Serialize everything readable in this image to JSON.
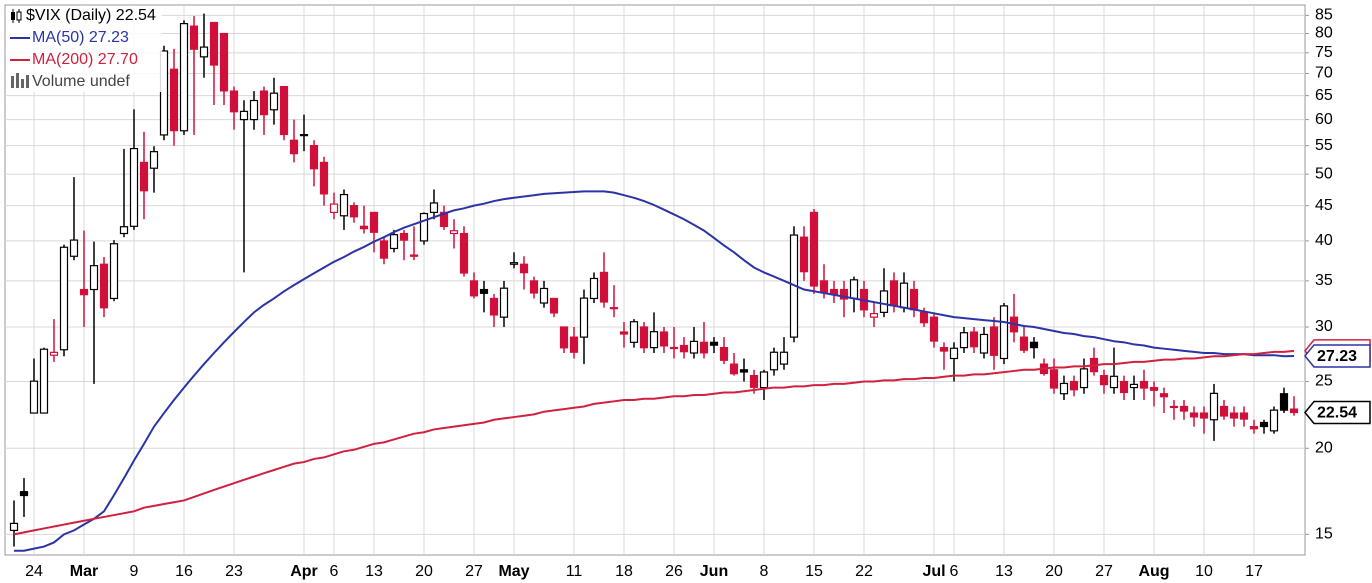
{
  "chart_data": {
    "type": "candlestick",
    "title": "$VIX (Daily) 22.54",
    "volume_label": "Volume undef",
    "log_scale": true,
    "grid": true,
    "up_color": "#000000",
    "down_color": "#d0103a",
    "ylim": [
      14,
      88
    ],
    "yticks": [
      15,
      20,
      25,
      30,
      35,
      40,
      45,
      50,
      55,
      60,
      65,
      70,
      75,
      80,
      85
    ],
    "categories": [
      null,
      null,
      "24",
      null,
      null,
      null,
      null,
      "Mar",
      null,
      null,
      null,
      null,
      "9",
      null,
      null,
      null,
      null,
      "16",
      null,
      null,
      null,
      null,
      "23",
      null,
      null,
      null,
      null,
      null,
      null,
      "Apr",
      null,
      null,
      "6",
      null,
      null,
      null,
      "13",
      null,
      null,
      null,
      null,
      "20",
      null,
      null,
      null,
      null,
      "27",
      null,
      null,
      null,
      "May",
      null,
      null,
      null,
      null,
      null,
      "11",
      null,
      null,
      null,
      null,
      "18",
      null,
      null,
      null,
      null,
      "26",
      null,
      null,
      null,
      "Jun",
      null,
      null,
      null,
      null,
      "8",
      null,
      null,
      null,
      null,
      "15",
      null,
      null,
      null,
      null,
      "22",
      null,
      null,
      null,
      null,
      null,
      null,
      "Jul",
      null,
      "6",
      null,
      null,
      null,
      null,
      "13",
      null,
      null,
      null,
      null,
      "20",
      null,
      null,
      null,
      null,
      "27",
      null,
      null,
      null,
      null,
      "Aug",
      null,
      null,
      null,
      null,
      "10",
      null,
      null,
      null,
      null,
      "17",
      null,
      null,
      null,
      null
    ],
    "open": [
      15.2,
      17.3,
      22.5,
      22.5,
      27.3,
      27.8,
      38.0,
      34.0,
      34.0,
      37.0,
      33.0,
      41.0,
      42.0,
      52.0,
      51.0,
      57.0,
      71.0,
      57.8,
      82.0,
      74.0,
      83.0,
      80.0,
      66.0,
      60.0,
      60.0,
      66.0,
      62.0,
      67.0,
      56.0,
      57.0,
      55.0,
      52.0,
      44.0,
      43.5,
      45.0,
      42.0,
      44.0,
      40.0,
      39.0,
      41.0,
      38.0,
      40.0,
      44.0,
      44.0,
      41.0,
      41.0,
      35.0,
      34.0,
      33.0,
      31.0,
      37.0,
      37.0,
      35.0,
      32.5,
      33.0,
      30.0,
      29.0,
      29.0,
      33.0,
      36.0,
      32.0,
      29.5,
      28.5,
      30.0,
      28.0,
      29.5,
      28.0,
      28.2,
      27.5,
      28.5,
      28.5,
      28.0,
      26.5,
      26.0,
      25.5,
      24.5,
      26.0,
      26.5,
      29.0,
      40.5,
      44.0,
      35.0,
      34.0,
      34.0,
      33.0,
      34.0,
      31.0,
      31.5,
      35.0,
      32.0,
      34.0,
      31.5,
      31.0,
      28.0,
      27.0,
      28.0,
      29.5,
      27.5,
      30.0,
      27.0,
      31.0,
      29.0,
      28.5,
      26.5,
      26.0,
      24.0,
      25.0,
      24.5,
      27.0,
      25.5,
      24.5,
      25.0,
      24.5,
      25.0,
      24.5,
      24.0,
      23.0,
      23.0,
      22.5,
      22.5,
      22.0,
      23.0,
      22.5,
      22.5,
      21.5,
      21.8,
      21.2,
      24.0,
      22.8
    ],
    "high": [
      16.8,
      18.1,
      27.0,
      28.0,
      30.8,
      39.5,
      49.5,
      41.4,
      39.9,
      37.9,
      40.1,
      54.4,
      62.1,
      57.6,
      54.9,
      76.8,
      76.0,
      83.6,
      84.8,
      85.5,
      83.0,
      80.0,
      67.0,
      64.0,
      66.0,
      67.0,
      69.0,
      67.0,
      60.0,
      61.0,
      56.0,
      53.0,
      47.0,
      47.5,
      45.5,
      45.0,
      44.0,
      40.5,
      41.5,
      41.5,
      42.0,
      44.0,
      47.5,
      45.0,
      43.0,
      42.0,
      36.0,
      35.0,
      33.5,
      35.0,
      38.5,
      38.0,
      35.5,
      35.0,
      33.0,
      30.0,
      30.0,
      34.0,
      36.0,
      38.5,
      34.5,
      30.5,
      30.8,
      30.5,
      31.5,
      30.0,
      30.0,
      29.0,
      30.0,
      30.5,
      29.0,
      29.0,
      27.5,
      27.0,
      26.0,
      26.0,
      28.0,
      29.0,
      42.0,
      42.0,
      44.5,
      37.0,
      35.0,
      35.0,
      35.5,
      35.0,
      32.5,
      36.5,
      36.0,
      36.0,
      35.0,
      32.0,
      31.5,
      28.5,
      28.5,
      30.0,
      30.0,
      30.0,
      31.0,
      32.5,
      33.5,
      30.0,
      29.0,
      27.0,
      27.0,
      25.5,
      25.5,
      27.0,
      28.0,
      26.0,
      28.0,
      25.5,
      25.5,
      26.0,
      25.0,
      24.5,
      23.5,
      23.5,
      23.0,
      23.0,
      24.8,
      23.5,
      23.0,
      23.0,
      22.0,
      22.0,
      23.0,
      24.5,
      23.8
    ],
    "low": [
      14.4,
      15.9,
      22.5,
      22.5,
      26.7,
      27.2,
      37.5,
      30.0,
      24.8,
      31.0,
      32.7,
      40.5,
      41.5,
      43.0,
      47.0,
      56.0,
      55.0,
      57.0,
      57.0,
      69.0,
      63.0,
      63.0,
      58.0,
      36.0,
      58.0,
      57.0,
      59.0,
      56.0,
      52.0,
      54.0,
      48.0,
      45.0,
      43.0,
      41.5,
      42.5,
      41.0,
      38.5,
      37.0,
      38.5,
      37.5,
      37.5,
      39.5,
      43.0,
      41.5,
      39.0,
      35.5,
      33.0,
      31.5,
      30.0,
      30.0,
      36.5,
      34.0,
      33.0,
      32.0,
      31.0,
      27.5,
      27.0,
      26.5,
      32.5,
      32.0,
      31.0,
      28.0,
      28.0,
      27.5,
      27.5,
      27.5,
      27.0,
      27.0,
      27.0,
      27.0,
      27.5,
      26.5,
      25.5,
      25.0,
      24.0,
      23.5,
      25.5,
      26.0,
      28.5,
      35.0,
      33.5,
      33.0,
      32.5,
      31.0,
      31.5,
      31.0,
      30.0,
      31.0,
      31.5,
      31.5,
      31.0,
      30.0,
      28.0,
      26.0,
      25.0,
      27.5,
      27.5,
      27.0,
      26.0,
      26.5,
      28.5,
      27.5,
      27.0,
      25.5,
      24.0,
      23.5,
      23.8,
      24.0,
      25.5,
      24.0,
      24.0,
      23.5,
      23.5,
      23.5,
      23.0,
      22.5,
      22.0,
      22.0,
      21.5,
      21.0,
      20.5,
      22.0,
      21.5,
      21.5,
      21.0,
      21.0,
      21.0,
      22.5,
      22.3
    ],
    "close": [
      15.56,
      17.08,
      25.03,
      27.85,
      27.56,
      39.16,
      40.11,
      33.42,
      36.82,
      31.99,
      39.62,
      41.94,
      54.46,
      47.3,
      53.9,
      75.47,
      57.83,
      82.69,
      75.91,
      76.45,
      72.0,
      66.04,
      61.59,
      61.67,
      63.95,
      61.0,
      65.54,
      57.08,
      53.54,
      57.06,
      50.91,
      46.8,
      45.24,
      46.7,
      43.35,
      41.67,
      41.17,
      37.76,
      40.84,
      40.11,
      38.15,
      43.83,
      45.41,
      41.98,
      41.38,
      35.93,
      33.29,
      33.57,
      31.23,
      34.15,
      37.19,
      35.97,
      33.61,
      34.12,
      31.44,
      27.98,
      27.57,
      33.04,
      35.28,
      32.61,
      31.89,
      29.3,
      30.53,
      27.99,
      29.53,
      28.16,
      28.01,
      27.62,
      28.59,
      27.51,
      28.23,
      26.84,
      25.66,
      25.81,
      24.52,
      25.81,
      27.57,
      27.57,
      40.79,
      36.09,
      34.4,
      33.67,
      33.47,
      32.94,
      35.12,
      31.77,
      31.37,
      33.84,
      32.22,
      34.73,
      31.78,
      30.43,
      28.62,
      27.68,
      27.94,
      29.43,
      28.08,
      29.26,
      27.29,
      32.19,
      29.52,
      27.76,
      28.0,
      25.68,
      24.46,
      24.84,
      24.32,
      26.08,
      25.84,
      24.74,
      25.44,
      24.1,
      24.76,
      24.46,
      24.28,
      23.76,
      22.99,
      22.65,
      22.21,
      22.13,
      24.03,
      22.28,
      22.13,
      22.05,
      21.35,
      21.51,
      22.72,
      22.72,
      22.54
    ],
    "series": [
      {
        "name": "MA(50) 27.23",
        "color": "#2b34a6",
        "values": [
          14.2,
          14.2,
          14.3,
          14.4,
          14.6,
          15.0,
          15.2,
          15.5,
          15.8,
          16.2,
          17.1,
          18.1,
          19.2,
          20.3,
          21.5,
          22.5,
          23.5,
          24.5,
          25.5,
          26.5,
          27.5,
          28.5,
          29.5,
          30.5,
          31.5,
          32.3,
          33.0,
          33.8,
          34.5,
          35.2,
          35.9,
          36.6,
          37.3,
          37.9,
          38.6,
          39.2,
          39.9,
          40.5,
          41.2,
          41.8,
          42.3,
          42.8,
          43.3,
          43.8,
          44.3,
          44.6,
          45.0,
          45.3,
          45.7,
          46.0,
          46.2,
          46.4,
          46.6,
          46.8,
          46.9,
          47.0,
          47.1,
          47.2,
          47.2,
          47.2,
          47.0,
          46.6,
          46.2,
          45.7,
          45.1,
          44.4,
          43.7,
          43.0,
          42.2,
          41.4,
          40.4,
          39.4,
          38.5,
          37.5,
          36.6,
          36.0,
          35.5,
          35.0,
          34.5,
          34.0,
          33.8,
          33.6,
          33.4,
          33.2,
          33.0,
          32.8,
          32.6,
          32.4,
          32.2,
          32.0,
          31.8,
          31.6,
          31.4,
          31.2,
          31.0,
          30.9,
          30.8,
          30.7,
          30.6,
          30.5,
          30.3,
          30.1,
          30.0,
          29.8,
          29.6,
          29.4,
          29.3,
          29.1,
          29.0,
          28.8,
          28.6,
          28.5,
          28.3,
          28.2,
          28.0,
          27.9,
          27.8,
          27.7,
          27.6,
          27.5,
          27.5,
          27.4,
          27.4,
          27.4,
          27.3,
          27.3,
          27.3,
          27.2,
          27.23
        ]
      },
      {
        "name": "MA(200) 27.70",
        "color": "#d0213f",
        "values": [
          15.0,
          15.1,
          15.2,
          15.3,
          15.4,
          15.5,
          15.6,
          15.7,
          15.8,
          15.9,
          16.0,
          16.1,
          16.2,
          16.4,
          16.5,
          16.6,
          16.7,
          16.8,
          17.0,
          17.2,
          17.4,
          17.6,
          17.8,
          18.0,
          18.2,
          18.4,
          18.6,
          18.8,
          19.0,
          19.1,
          19.3,
          19.4,
          19.6,
          19.8,
          19.9,
          20.1,
          20.3,
          20.4,
          20.6,
          20.8,
          21.0,
          21.1,
          21.3,
          21.4,
          21.5,
          21.6,
          21.7,
          21.8,
          22.0,
          22.1,
          22.2,
          22.3,
          22.4,
          22.6,
          22.7,
          22.8,
          22.9,
          23.0,
          23.2,
          23.3,
          23.4,
          23.5,
          23.5,
          23.6,
          23.6,
          23.7,
          23.8,
          23.8,
          23.9,
          23.9,
          24.0,
          24.1,
          24.1,
          24.2,
          24.3,
          24.4,
          24.5,
          24.5,
          24.6,
          24.6,
          24.7,
          24.7,
          24.8,
          24.8,
          24.9,
          25.0,
          25.0,
          25.1,
          25.1,
          25.2,
          25.2,
          25.3,
          25.3,
          25.4,
          25.5,
          25.5,
          25.6,
          25.6,
          25.7,
          25.8,
          25.9,
          26.0,
          26.0,
          26.1,
          26.2,
          26.2,
          26.3,
          26.3,
          26.4,
          26.5,
          26.5,
          26.6,
          26.7,
          26.7,
          26.8,
          26.9,
          26.9,
          27.0,
          27.0,
          27.1,
          27.2,
          27.2,
          27.3,
          27.4,
          27.4,
          27.5,
          27.6,
          27.6,
          27.7
        ]
      }
    ],
    "price_tags": [
      {
        "value": 27.7,
        "label": "27.70",
        "color": "#d0213f"
      },
      {
        "value": 27.23,
        "label": "27.23",
        "color": "#2b34a6"
      },
      {
        "value": 22.54,
        "label": "22.54",
        "color": "#000000"
      }
    ]
  }
}
